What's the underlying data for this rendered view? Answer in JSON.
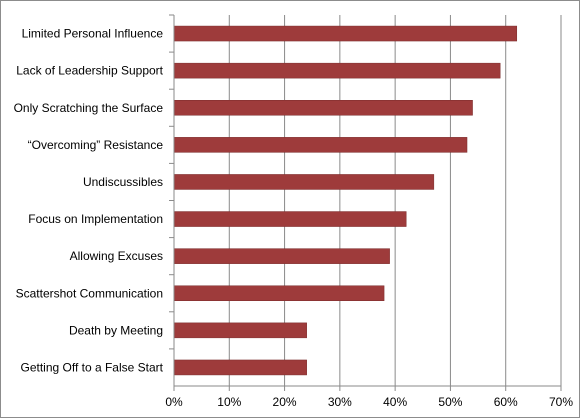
{
  "chart_data": {
    "type": "bar",
    "orientation": "horizontal",
    "categories": [
      "Limited Personal Influence",
      "Lack of Leadership Support",
      "Only Scratching the Surface",
      "“Overcoming” Resistance",
      "Undiscussibles",
      "Focus on Implementation",
      "Allowing Excuses",
      "Scattershot Communication",
      "Death by Meeting",
      "Getting Off to a False Start"
    ],
    "values": [
      62,
      59,
      54,
      53,
      47,
      42,
      39,
      38,
      24,
      24
    ],
    "x_ticks": [
      "0%",
      "10%",
      "20%",
      "30%",
      "40%",
      "50%",
      "60%",
      "70%"
    ],
    "xlim": [
      0,
      70
    ],
    "grid": "vertical",
    "legend": "none",
    "bar_color": "#9e3b3b"
  }
}
